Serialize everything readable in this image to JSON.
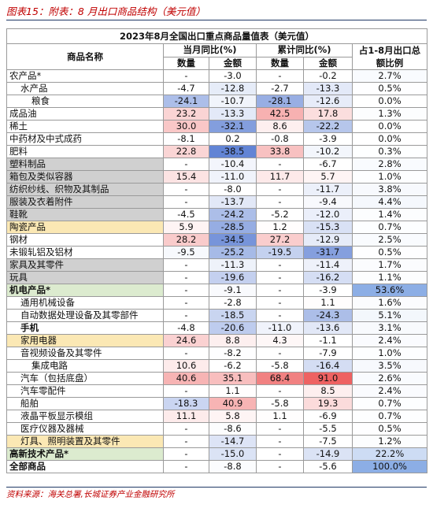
{
  "header": {
    "title": "图表15：附表：8 月出口商品结构（美元值）"
  },
  "table": {
    "title": "2023年8月全国出口重点商品量值表（美元值）",
    "name_header": "商品名称",
    "group_headers": [
      "当月同比(%)",
      "累计同比(%)"
    ],
    "sub_headers": [
      "数量",
      "金额",
      "数量",
      "金额"
    ],
    "share_header": "占1-8月出口总额比例",
    "rows": [
      {
        "name": "农产品*",
        "cells": [
          "-",
          "-3.0",
          "-",
          "-0.2",
          "2.7%"
        ]
      },
      {
        "name": "水产品",
        "cells": [
          "-4.7",
          "-12.8",
          "-2.7",
          "-13.3",
          "0.5%"
        ]
      },
      {
        "name": "粮食",
        "cells": [
          "-24.1",
          "-10.7",
          "-28.1",
          "-12.6",
          "0.0%"
        ]
      },
      {
        "name": "成品油",
        "cells": [
          "23.2",
          "-13.3",
          "42.5",
          "17.8",
          "1.3%"
        ]
      },
      {
        "name": "稀土",
        "cells": [
          "30.0",
          "-32.1",
          "8.6",
          "-22.2",
          "0.0%"
        ]
      },
      {
        "name": "中药材及中式成药",
        "cells": [
          "-8.1",
          "0.2",
          "-0.8",
          "-3.9",
          "0.0%"
        ]
      },
      {
        "name": "肥料",
        "cells": [
          "22.8",
          "-38.5",
          "33.8",
          "-10.2",
          "0.3%"
        ]
      },
      {
        "name": "塑料制品",
        "cells": [
          "-",
          "-10.4",
          "-",
          "-6.7",
          "2.8%"
        ]
      },
      {
        "name": "箱包及类似容器",
        "cells": [
          "15.4",
          "-11.0",
          "11.7",
          "5.7",
          "1.0%"
        ]
      },
      {
        "name": "纺织纱线、织物及其制品",
        "cells": [
          "-",
          "-8.0",
          "-",
          "-11.7",
          "3.8%"
        ]
      },
      {
        "name": "服装及衣着附件",
        "cells": [
          "-",
          "-13.7",
          "-",
          "-9.4",
          "4.4%"
        ]
      },
      {
        "name": "鞋靴",
        "cells": [
          "-4.5",
          "-24.2",
          "-5.2",
          "-12.0",
          "1.4%"
        ]
      },
      {
        "name": "陶瓷产品",
        "cells": [
          "5.9",
          "-28.5",
          "1.2",
          "-15.3",
          "0.7%"
        ]
      },
      {
        "name": "钢材",
        "cells": [
          "28.2",
          "-34.5",
          "27.2",
          "-12.9",
          "2.5%"
        ]
      },
      {
        "name": "未锻轧铝及铝材",
        "cells": [
          "-9.5",
          "-25.2",
          "-19.5",
          "-31.7",
          "0.5%"
        ]
      },
      {
        "name": "家具及其零件",
        "cells": [
          "-",
          "-11.3",
          "-",
          "-11.4",
          "1.7%"
        ]
      },
      {
        "name": "玩具",
        "cells": [
          "-",
          "-19.6",
          "-",
          "-16.2",
          "1.1%"
        ]
      },
      {
        "name": "机电产品*",
        "cells": [
          "-",
          "-9.1",
          "-",
          "-3.9",
          "53.6%"
        ]
      },
      {
        "name": "通用机械设备",
        "cells": [
          "-",
          "-2.8",
          "-",
          "1.1",
          "1.6%"
        ]
      },
      {
        "name": "自动数据处理设备及其零部件",
        "cells": [
          "-",
          "-18.5",
          "-",
          "-24.3",
          "5.1%"
        ]
      },
      {
        "name": "手机",
        "cells": [
          "-4.8",
          "-20.6",
          "-11.0",
          "-13.6",
          "3.1%"
        ]
      },
      {
        "name": "家用电器",
        "cells": [
          "24.6",
          "8.8",
          "4.3",
          "-1.1",
          "2.4%"
        ]
      },
      {
        "name": "音视频设备及其零件",
        "cells": [
          "-",
          "-8.2",
          "-",
          "-7.9",
          "1.0%"
        ]
      },
      {
        "name": "集成电路",
        "cells": [
          "10.6",
          "-6.2",
          "-5.8",
          "-16.4",
          "3.5%"
        ]
      },
      {
        "name": "汽车（包括底盘）",
        "cells": [
          "40.6",
          "35.1",
          "68.4",
          "91.0",
          "2.6%"
        ]
      },
      {
        "name": "汽车零配件",
        "cells": [
          "-",
          "1.1",
          "-",
          "8.5",
          "2.4%"
        ]
      },
      {
        "name": "船舶",
        "cells": [
          "-18.3",
          "40.9",
          "-5.8",
          "19.3",
          "0.7%"
        ]
      },
      {
        "name": "液晶平板显示模组",
        "cells": [
          "11.1",
          "5.8",
          "1.1",
          "-6.9",
          "0.7%"
        ]
      },
      {
        "name": "医疗仪器及器械",
        "cells": [
          "-",
          "-8.6",
          "-",
          "-5.5",
          "0.5%"
        ]
      },
      {
        "name": "灯具、照明装置及其零件",
        "cells": [
          "-",
          "-14.7",
          "-",
          "-7.5",
          "1.2%"
        ]
      },
      {
        "name": "高新技术产品*",
        "cells": [
          "-",
          "-15.0",
          "-",
          "-14.9",
          "22.2%"
        ]
      },
      {
        "name": "全部商品",
        "cells": [
          "-",
          "-8.8",
          "-",
          "-5.6",
          "100.0%"
        ]
      }
    ]
  },
  "source": "资料来源：海关总署,长城证券产业金融研究所"
}
